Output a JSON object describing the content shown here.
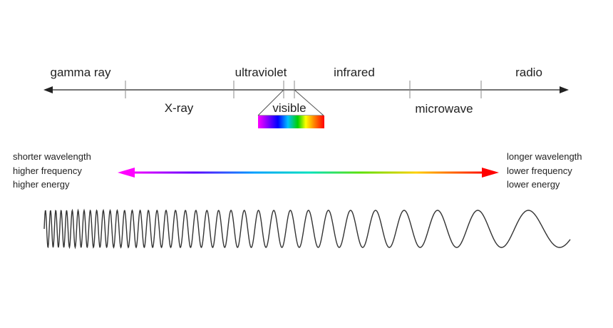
{
  "bands_above": [
    "gamma ray",
    "ultraviolet",
    "infrared",
    "radio"
  ],
  "bands_below": [
    "X-ray",
    "visible",
    "microwave"
  ],
  "left_note": [
    "shorter wavelength",
    "higher frequency",
    "higher energy"
  ],
  "right_note": [
    "longer wavelength",
    "lower frequency",
    "lower energy"
  ]
}
